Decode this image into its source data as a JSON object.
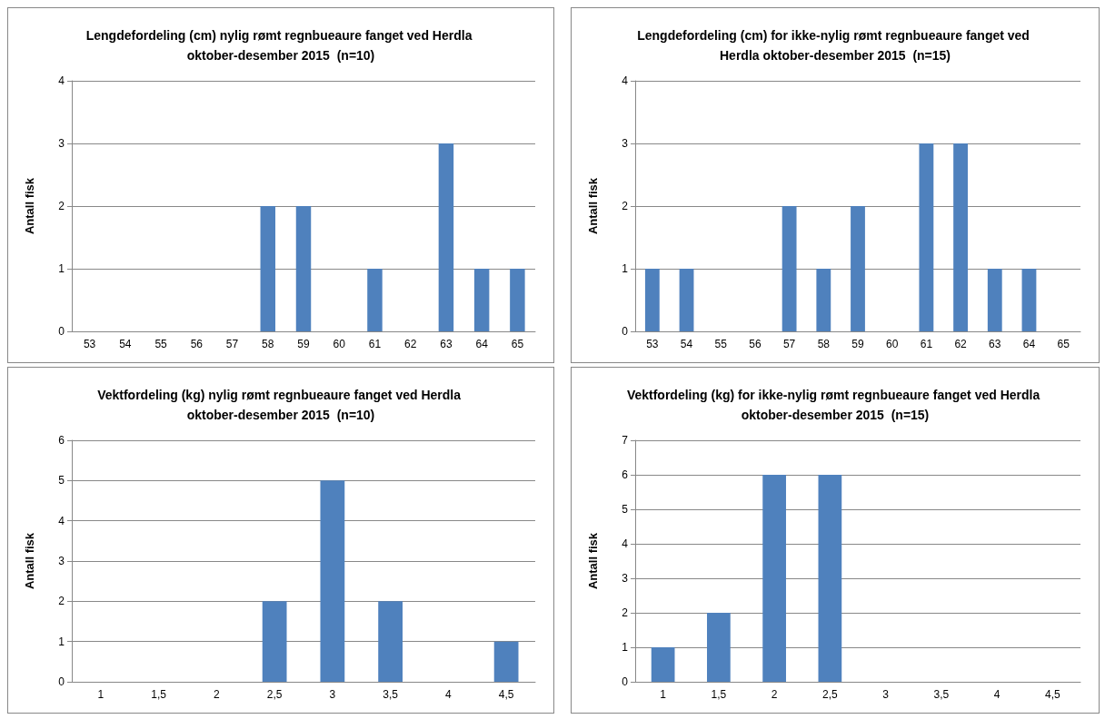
{
  "chart_data": [
    {
      "type": "bar",
      "title": "Lengdefordeling (cm) nylig rømt regnbueaure fanget ved Herdla oktober-desember 2015  (n=10)",
      "ylabel": "Antall fisk",
      "categories": [
        "53",
        "54",
        "55",
        "56",
        "57",
        "58",
        "59",
        "60",
        "61",
        "62",
        "63",
        "64",
        "65"
      ],
      "values": [
        0,
        0,
        0,
        0,
        0,
        2,
        2,
        0,
        1,
        0,
        3,
        1,
        1
      ],
      "color": "#4f81bd",
      "ylim": [
        0,
        4
      ],
      "yticks": [
        0,
        1,
        2,
        3,
        4
      ],
      "grid": "y"
    },
    {
      "type": "bar",
      "title": "Lengdefordeling (cm) for ikke-nylig rømt regnbueaure fanget ved Herdla oktober-desember 2015  (n=15)",
      "ylabel": "Antall fisk",
      "categories": [
        "53",
        "54",
        "55",
        "56",
        "57",
        "58",
        "59",
        "60",
        "61",
        "62",
        "63",
        "64",
        "65"
      ],
      "values": [
        1,
        1,
        0,
        0,
        2,
        1,
        2,
        0,
        3,
        3,
        1,
        1,
        0
      ],
      "color": "#4f81bd",
      "ylim": [
        0,
        4
      ],
      "yticks": [
        0,
        1,
        2,
        3,
        4
      ],
      "grid": "y"
    },
    {
      "type": "bar",
      "title": "Vektfordeling (kg) nylig rømt regnbueaure fanget ved Herdla oktober-desember 2015  (n=10)",
      "ylabel": "Antall fisk",
      "categories": [
        "1",
        "1,5",
        "2",
        "2,5",
        "3",
        "3,5",
        "4",
        "4,5"
      ],
      "values": [
        0,
        0,
        0,
        2,
        5,
        2,
        0,
        1
      ],
      "color": "#4f81bd",
      "ylim": [
        0,
        6
      ],
      "yticks": [
        0,
        1,
        2,
        3,
        4,
        5,
        6
      ],
      "grid": "y"
    },
    {
      "type": "bar",
      "title": "Vektfordeling (kg) for ikke-nylig rømt regnbueaure fanget ved Herdla oktober-desember 2015  (n=15)",
      "ylabel": "Antall fisk",
      "categories": [
        "1",
        "1,5",
        "2",
        "2,5",
        "3",
        "3,5",
        "4",
        "4,5"
      ],
      "values": [
        1,
        2,
        6,
        6,
        0,
        0,
        0,
        0
      ],
      "color": "#4f81bd",
      "ylim": [
        0,
        7
      ],
      "yticks": [
        0,
        1,
        2,
        3,
        4,
        5,
        6,
        7
      ],
      "grid": "y"
    }
  ]
}
